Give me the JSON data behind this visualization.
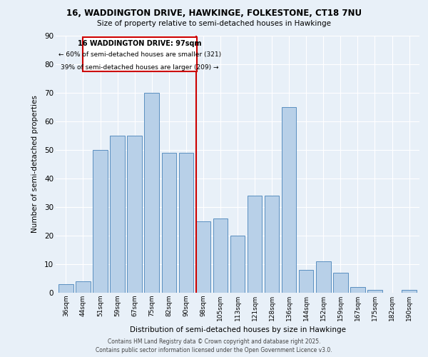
{
  "title_line1": "16, WADDINGTON DRIVE, HAWKINGE, FOLKESTONE, CT18 7NU",
  "title_line2": "Size of property relative to semi-detached houses in Hawkinge",
  "xlabel": "Distribution of semi-detached houses by size in Hawkinge",
  "ylabel": "Number of semi-detached properties",
  "categories": [
    "36sqm",
    "44sqm",
    "51sqm",
    "59sqm",
    "67sqm",
    "75sqm",
    "82sqm",
    "90sqm",
    "98sqm",
    "105sqm",
    "113sqm",
    "121sqm",
    "128sqm",
    "136sqm",
    "144sqm",
    "152sqm",
    "159sqm",
    "167sqm",
    "175sqm",
    "182sqm",
    "190sqm"
  ],
  "values": [
    3,
    4,
    50,
    55,
    55,
    70,
    49,
    49,
    25,
    26,
    20,
    34,
    34,
    65,
    8,
    11,
    7,
    2,
    1,
    0,
    1
  ],
  "bar_color": "#b8d0e8",
  "bar_edge_color": "#5a8fc0",
  "highlight_index": 8,
  "red_line_label": "16 WADDINGTON DRIVE: 97sqm",
  "annotation_line1": "← 60% of semi-detached houses are smaller (321)",
  "annotation_line2": "39% of semi-detached houses are larger (209) →",
  "red_color": "#cc0000",
  "annotation_box_color": "#ffffff",
  "background_color": "#e8f0f8",
  "footer_line1": "Contains HM Land Registry data © Crown copyright and database right 2025.",
  "footer_line2": "Contains public sector information licensed under the Open Government Licence v3.0.",
  "ylim": [
    0,
    90
  ],
  "yticks": [
    0,
    10,
    20,
    30,
    40,
    50,
    60,
    70,
    80,
    90
  ]
}
